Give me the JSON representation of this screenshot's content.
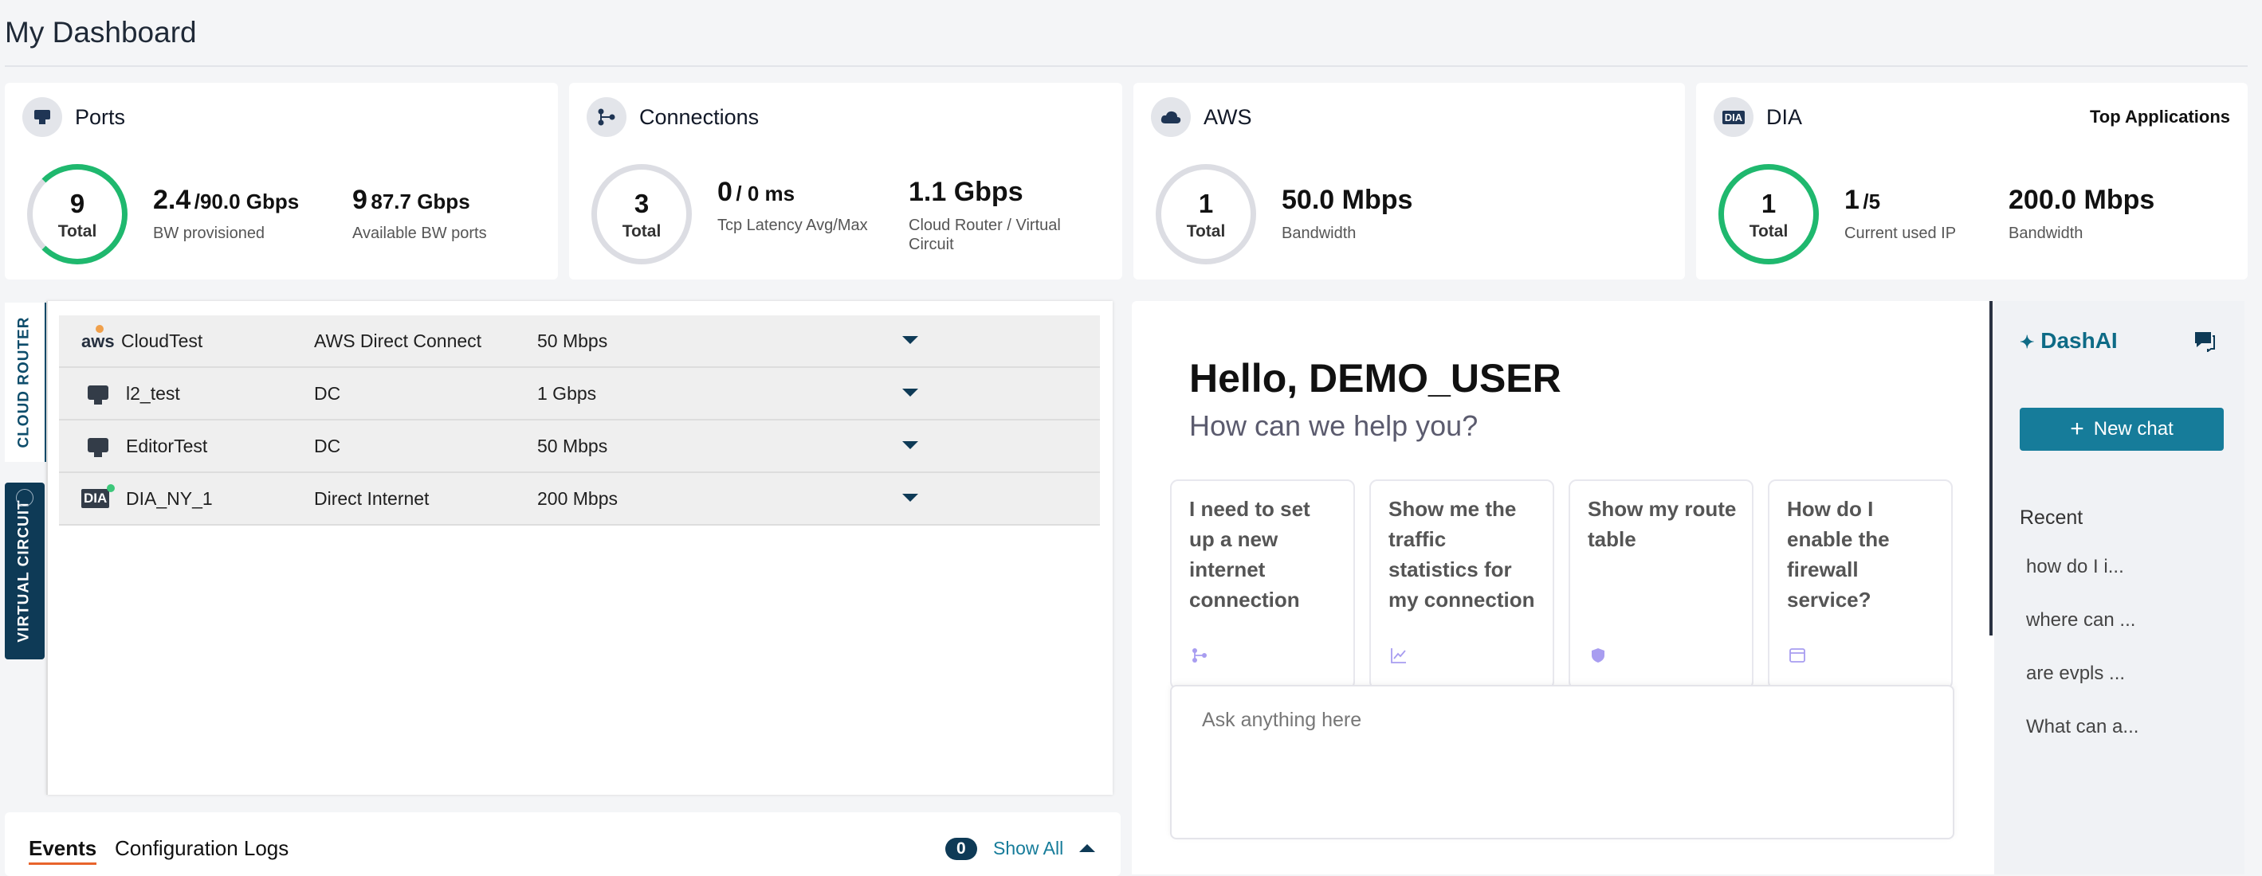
{
  "page": {
    "title": "My Dashboard"
  },
  "cards": {
    "ports": {
      "title": "Ports",
      "ring_value": "9",
      "ring_label": "Total",
      "stat1_big": "2.4",
      "stat1_small": "/90.0 Gbps",
      "stat1_label": "BW provisioned",
      "stat2_big": "9",
      "stat2_small": "87.7 Gbps",
      "stat2_label": "Available BW ports"
    },
    "connections": {
      "title": "Connections",
      "ring_value": "3",
      "ring_label": "Total",
      "stat1_big": "0",
      "stat1_small": "/ 0 ms",
      "stat1_label": "Tcp Latency Avg/Max",
      "stat2_big": "1.1 Gbps",
      "stat2_label": "Cloud Router / Virtual Circuit"
    },
    "aws": {
      "title": "AWS",
      "ring_value": "1",
      "ring_label": "Total",
      "stat1_big": "50.0 Mbps",
      "stat1_label": "Bandwidth"
    },
    "dia": {
      "title": "DIA",
      "icon_text": "DIA",
      "top_apps": "Top Applications",
      "ring_value": "1",
      "ring_label": "Total",
      "stat1_big": "1",
      "stat1_small": "/5",
      "stat1_label": "Current used IP",
      "stat2_big": "200.0 Mbps",
      "stat2_label": "Bandwidth"
    }
  },
  "side_tabs": {
    "cloud_router": "CLOUD ROUTER",
    "virtual_circuit": "VIRTUAL CIRCUIT"
  },
  "routers": [
    {
      "name": "CloudTest",
      "type": "AWS Direct Connect",
      "bandwidth": "50 Mbps",
      "icon": "aws-icon",
      "icon_text": "aws"
    },
    {
      "name": "l2_test",
      "type": "DC",
      "bandwidth": "1 Gbps",
      "icon": "port-icon"
    },
    {
      "name": "EditorTest",
      "type": "DC",
      "bandwidth": "50 Mbps",
      "icon": "port-icon"
    },
    {
      "name": "DIA_NY_1",
      "type": "Direct Internet",
      "bandwidth": "200 Mbps",
      "icon": "dia-icon",
      "icon_text": "DIA"
    }
  ],
  "events": {
    "tab_events": "Events",
    "tab_logs": "Configuration Logs",
    "count": "0",
    "show_all": "Show All"
  },
  "chat": {
    "greeting": "Hello, DEMO_USER",
    "subtitle": "How can we help you?",
    "suggestions": [
      {
        "text": "I need to set up a new internet connection",
        "icon": "connection-icon"
      },
      {
        "text": "Show me the traffic statistics for my connection",
        "icon": "chart-icon"
      },
      {
        "text": "Show my route table",
        "icon": "shield-icon"
      },
      {
        "text": "How do I enable the firewall service?",
        "icon": "window-icon"
      }
    ],
    "placeholder": "Ask anything here"
  },
  "dashai": {
    "title": "DashAI",
    "new_chat": "New chat",
    "recent_label": "Recent",
    "recent": [
      "how do I i...",
      "where can ...",
      "are evpls ...",
      "What can a..."
    ]
  },
  "colors": {
    "accent": "#167c9a",
    "ring_green": "#1fb86e",
    "navy": "#0e3a56",
    "events_underline": "#e8642c"
  }
}
